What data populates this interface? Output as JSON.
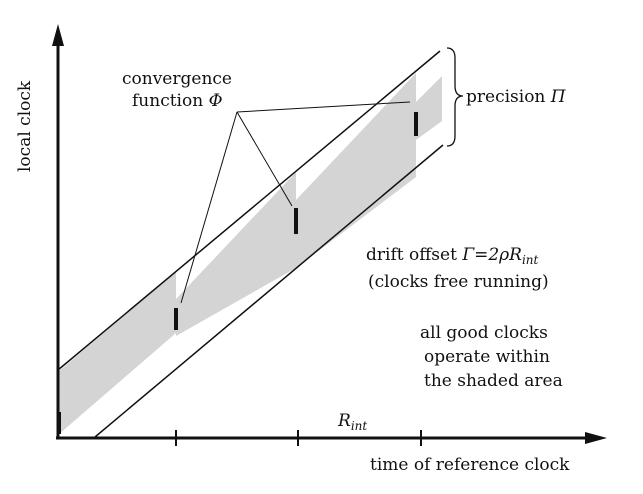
{
  "axes": {
    "y_label": "local clock",
    "x_label": "time of reference clock"
  },
  "annotations": {
    "convergence": {
      "line1": "convergence",
      "line2_text": "function",
      "line2_symbol": "Φ"
    },
    "precision": {
      "text": "precision",
      "symbol": "Π"
    },
    "drift": {
      "prefix": "drift offset",
      "formula_main": "Γ=2ρR",
      "formula_sub": "int",
      "line2": "(clocks free running)"
    },
    "good_clocks": {
      "line1": "all good clocks",
      "line2": "operate within",
      "line3": "the shaded area"
    },
    "interval": {
      "main": "R",
      "sub": "int"
    }
  },
  "colors": {
    "shade": "#d4d4d4",
    "ink": "#111111"
  }
}
